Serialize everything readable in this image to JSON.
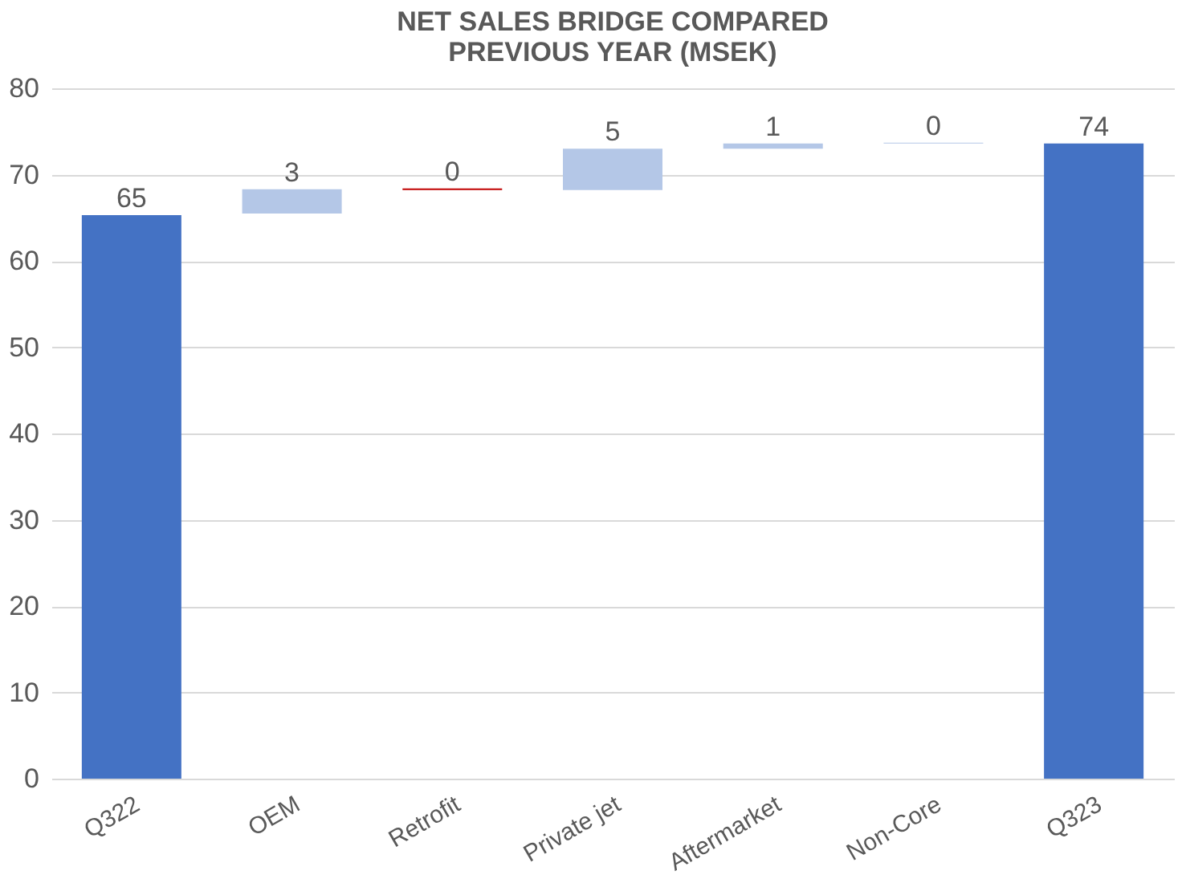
{
  "chart_data": {
    "type": "bar",
    "title": "NET SALES BRIDGE COMPARED\nPREVIOUS YEAR (MSEK)",
    "categories": [
      "Q322",
      "OEM",
      "Retrofit",
      "Private jet",
      "Aftermarket",
      "Non-Core",
      "Q323"
    ],
    "base": [
      0,
      65.5,
      68.4,
      68.2,
      73.0,
      73.6,
      0
    ],
    "values": [
      65.3,
      2.8,
      -0.2,
      4.8,
      0.6,
      0.1,
      73.6
    ],
    "value_labels": [
      "65",
      "3",
      "0",
      "5",
      "1",
      "0",
      "74"
    ],
    "colors": [
      "#4472c4",
      "#b4c7e7",
      "#c00000",
      "#b4c7e7",
      "#b4c7e7",
      "#b4c7e7",
      "#4472c4"
    ],
    "ylim": [
      0,
      80
    ],
    "yticks": [
      0,
      10,
      20,
      30,
      40,
      50,
      60,
      70,
      80
    ],
    "grid": "y"
  }
}
